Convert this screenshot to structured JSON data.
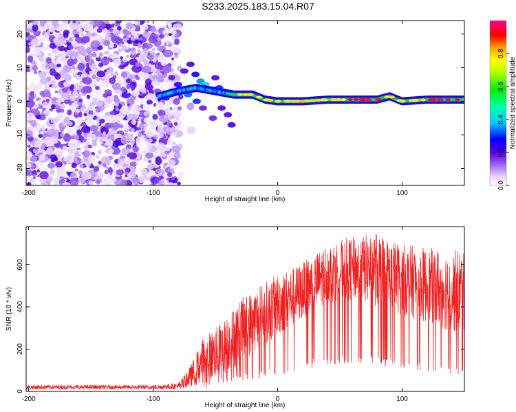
{
  "title": "S233.2025.183.15.04.R07",
  "chart_data": [
    {
      "type": "heatmap",
      "xlabel": "Height of straight line (km)",
      "ylabel": "Frequency (Hz)",
      "xlim": [
        -202,
        150
      ],
      "ylim": [
        -25,
        24
      ],
      "xticks": [
        -200,
        -100,
        0,
        100
      ],
      "yticks": [
        -20,
        -10,
        0,
        10,
        20
      ],
      "colorbar": {
        "label": "Normalized spectral amplitude",
        "range": [
          0,
          1
        ],
        "ticks": [
          0.0,
          0.2,
          0.4,
          0.6,
          0.8
        ]
      },
      "ridge": {
        "description_points": [
          [
            -95,
            1.5
          ],
          [
            -80,
            3
          ],
          [
            -65,
            4
          ],
          [
            -50,
            3
          ],
          [
            -35,
            2
          ],
          [
            -20,
            2
          ],
          [
            -10,
            0.5
          ],
          [
            0,
            0
          ],
          [
            20,
            0
          ],
          [
            40,
            0.5
          ],
          [
            60,
            0.5
          ],
          [
            80,
            0.5
          ],
          [
            90,
            1.5
          ],
          [
            100,
            0
          ],
          [
            120,
            0.5
          ],
          [
            150,
            0.5
          ]
        ]
      }
    },
    {
      "type": "line",
      "xlabel": "Height of straight line (km)",
      "ylabel": "SNR (10 * v/v)",
      "xlim": [
        -202,
        150
      ],
      "ylim": [
        0,
        780
      ],
      "xticks": [
        -200,
        -100,
        0,
        100
      ],
      "yticks": [
        0,
        200,
        400,
        600
      ],
      "series": [
        {
          "color": "#ee2222",
          "envelope": {
            "x": [
              -202,
              -150,
              -100,
              -80,
              -70,
              -60,
              -50,
              -40,
              -30,
              -20,
              -10,
              0,
              10,
              20,
              30,
              40,
              50,
              60,
              70,
              80,
              90,
              100,
              110,
              120,
              130,
              140,
              150
            ],
            "upper": [
              30,
              30,
              30,
              40,
              120,
              260,
              300,
              360,
              440,
              480,
              520,
              560,
              580,
              610,
              650,
              700,
              720,
              730,
              740,
              760,
              720,
              700,
              690,
              680,
              680,
              670,
              680
            ],
            "lower": [
              10,
              10,
              10,
              10,
              20,
              40,
              60,
              90,
              130,
              180,
              220,
              260,
              300,
              340,
              380,
              420,
              430,
              430,
              420,
              400,
              380,
              360,
              340,
              320,
              300,
              280,
              260
            ]
          }
        }
      ]
    }
  ]
}
